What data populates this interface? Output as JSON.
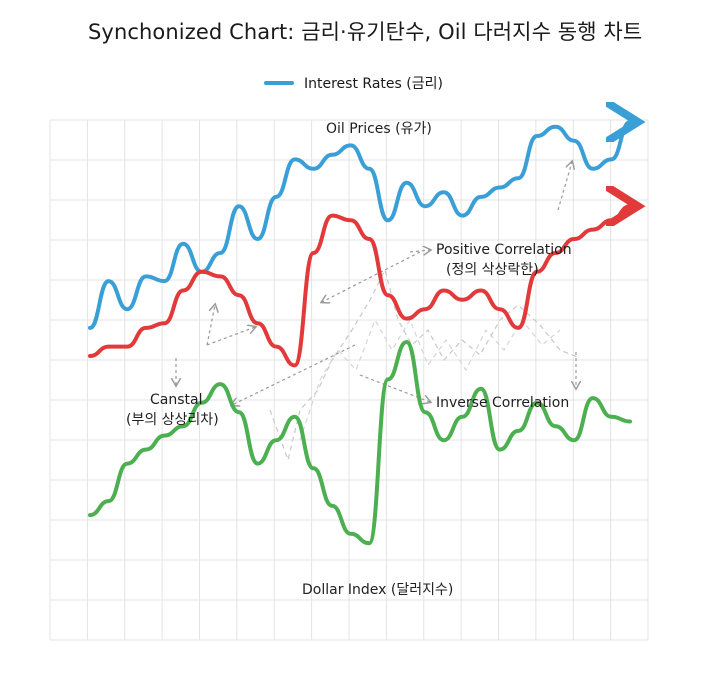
{
  "chart_data": {
    "type": "line",
    "title": "Synchonized Chart: 금리·유기탄수, Oil 다러지수 동행 차트",
    "legend": {
      "position": "top-center",
      "entries": [
        "Interest Rates (금리)"
      ]
    },
    "grid": true,
    "x": [
      0,
      1,
      2,
      3,
      4,
      5,
      6,
      7,
      8,
      9,
      10,
      11,
      12,
      13,
      14,
      15,
      16,
      17,
      18,
      19,
      20,
      21,
      22,
      23,
      24,
      25,
      26,
      27,
      28,
      29,
      30,
      31,
      32,
      33,
      34,
      35,
      36,
      37,
      38,
      39,
      40,
      41,
      42,
      43,
      44,
      45,
      46,
      47,
      48,
      49
    ],
    "ylim": [
      0,
      100
    ],
    "series": [
      {
        "label": "Oil Prices (유가)",
        "color": "#3a9fd6",
        "arrow_end": true,
        "x": [
          0,
          1,
          2,
          3,
          4,
          5,
          6,
          7,
          8,
          9,
          10,
          11,
          12,
          13,
          14,
          15,
          16,
          17,
          18,
          19,
          20,
          21,
          22,
          23,
          24,
          25,
          26,
          27,
          28,
          29
        ],
        "values": [
          56,
          66,
          60,
          67,
          66,
          74,
          68,
          72,
          82,
          75,
          84,
          92,
          90,
          93,
          95,
          90,
          79,
          87,
          82,
          85,
          80,
          84,
          86,
          88,
          97,
          99,
          96,
          90,
          92,
          100
        ]
      },
      {
        "label": "Positive Correlation (정의 삭상락한)",
        "color": "#e23a3a",
        "arrow_end": true,
        "x": [
          0,
          1,
          2,
          3,
          4,
          5,
          6,
          7,
          8,
          9,
          10,
          11,
          12,
          13,
          14,
          15,
          16,
          17,
          18,
          19,
          20,
          21,
          22,
          23,
          24,
          25,
          26,
          27,
          28,
          29
        ],
        "values": [
          50,
          52,
          52,
          56,
          57,
          64,
          68,
          67,
          63,
          57,
          52,
          48,
          72,
          80,
          79,
          75,
          63,
          58,
          60,
          64,
          62,
          64,
          60,
          56,
          68,
          72,
          75,
          77,
          79,
          82
        ]
      },
      {
        "label": "Dollar Index (달러지수)",
        "color": "#4caf50",
        "arrow_end": false,
        "x": [
          0,
          1,
          2,
          3,
          4,
          5,
          6,
          7,
          8,
          9,
          10,
          11,
          12,
          13,
          14,
          15,
          16,
          17,
          18,
          19,
          20,
          21,
          22,
          23,
          24,
          25,
          26,
          27,
          28,
          29
        ],
        "values": [
          16,
          19,
          27,
          30,
          33,
          35,
          40,
          44,
          38,
          27,
          32,
          37,
          26,
          18,
          12,
          10,
          45,
          53,
          38,
          32,
          37,
          43,
          30,
          34,
          40,
          35,
          32,
          41,
          37,
          36
        ]
      }
    ],
    "annotations": [
      {
        "text": "Oil Prices (유가)",
        "kind": "label"
      },
      {
        "text": "Positive Correlation",
        "kind": "callout"
      },
      {
        "text": "(정의 삭상락한)",
        "kind": "callout"
      },
      {
        "text": "Canstal",
        "kind": "callout"
      },
      {
        "text": "(부의 상상리차)",
        "kind": "callout"
      },
      {
        "text": "Inverse Correlation",
        "kind": "callout"
      },
      {
        "text": "Dollar Index (달러지수)",
        "kind": "label"
      }
    ]
  },
  "colors": {
    "oil": "#3a9fd6",
    "interest": "#e23a3a",
    "dollar": "#4caf50",
    "grid": "#e3e3e3",
    "dashed": "#b5b5b5"
  }
}
